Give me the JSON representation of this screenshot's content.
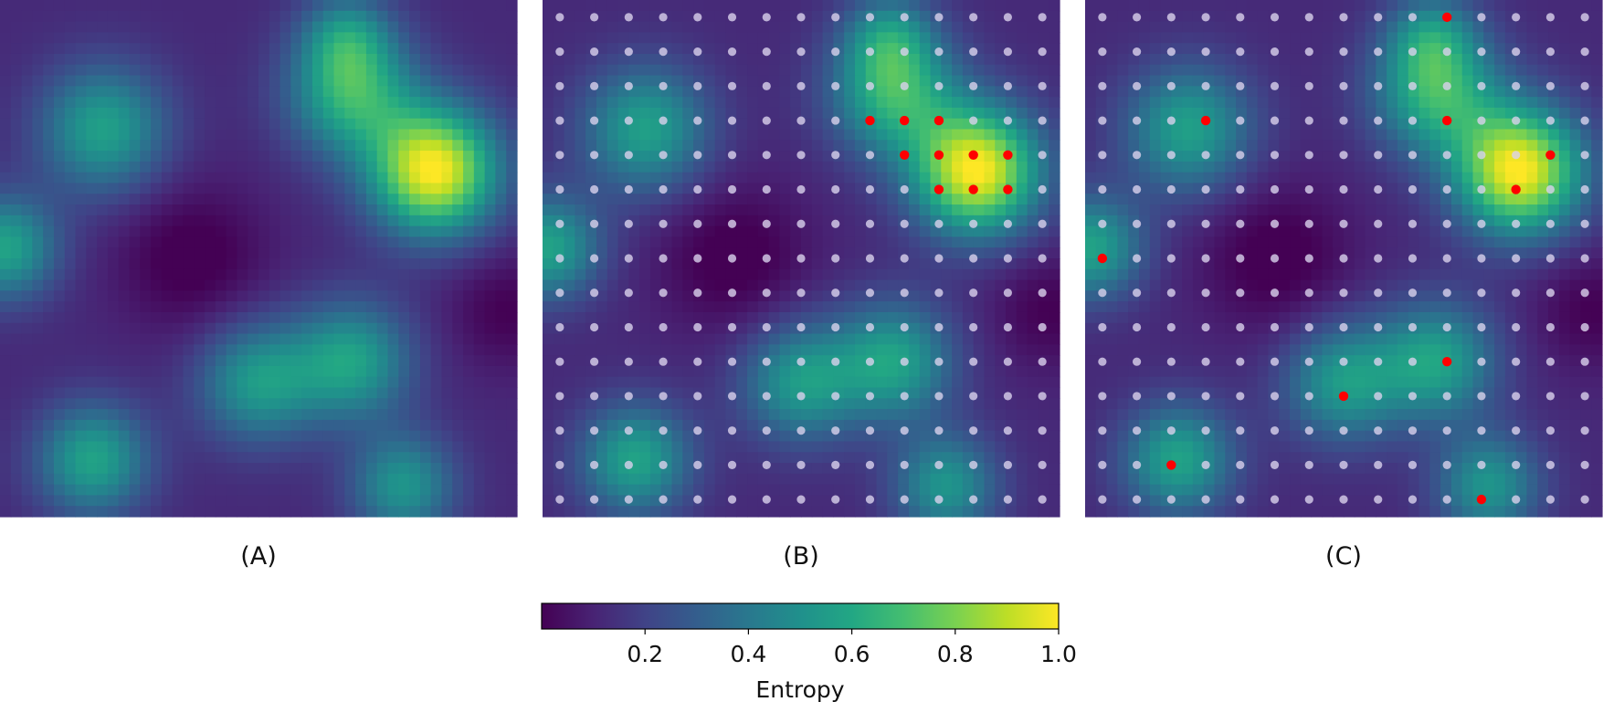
{
  "chart_data": {
    "type": "heatmap",
    "panels": [
      {
        "label": "(A)",
        "show_grid_points": false,
        "selected": []
      },
      {
        "label": "(B)",
        "show_grid_points": true,
        "selected": [
          [
            9,
            3
          ],
          [
            10,
            3
          ],
          [
            11,
            3
          ],
          [
            10,
            4
          ],
          [
            11,
            4
          ],
          [
            12,
            4
          ],
          [
            13,
            4
          ],
          [
            11,
            5
          ],
          [
            12,
            5
          ],
          [
            13,
            5
          ]
        ]
      },
      {
        "label": "(C)",
        "show_grid_points": true,
        "selected": [
          [
            10,
            0
          ],
          [
            3,
            3
          ],
          [
            10,
            3
          ],
          [
            13,
            4
          ],
          [
            12,
            5
          ],
          [
            0,
            7
          ],
          [
            10,
            10
          ],
          [
            7,
            11
          ],
          [
            2,
            13
          ],
          [
            11,
            14
          ]
        ]
      }
    ],
    "grid": {
      "cells": 48,
      "sample_points_per_side": 15
    },
    "field": {
      "background": 0.12,
      "bumps": [
        {
          "x": 0.84,
          "y": 0.33,
          "sigma": 0.085,
          "amp": 0.88
        },
        {
          "x": 0.68,
          "y": 0.18,
          "sigma": 0.085,
          "amp": 0.52
        },
        {
          "x": 0.67,
          "y": 0.07,
          "sigma": 0.06,
          "amp": 0.3
        },
        {
          "x": 0.2,
          "y": 0.25,
          "sigma": 0.085,
          "amp": 0.45
        },
        {
          "x": 0.01,
          "y": 0.48,
          "sigma": 0.07,
          "amp": 0.46
        },
        {
          "x": 0.68,
          "y": 0.7,
          "sigma": 0.08,
          "amp": 0.45
        },
        {
          "x": 0.5,
          "y": 0.74,
          "sigma": 0.08,
          "amp": 0.42
        },
        {
          "x": 0.18,
          "y": 0.89,
          "sigma": 0.075,
          "amp": 0.46
        },
        {
          "x": 0.78,
          "y": 0.94,
          "sigma": 0.07,
          "amp": 0.4
        }
      ],
      "dips": [
        {
          "x": 0.37,
          "y": 0.5,
          "sigma": 0.1,
          "amp": 0.15
        },
        {
          "x": 0.98,
          "y": 0.6,
          "sigma": 0.08,
          "amp": 0.12
        }
      ]
    },
    "colorbar": {
      "colormap": "viridis",
      "range": [
        0,
        1
      ],
      "ticks": [
        "0.2",
        "0.4",
        "0.6",
        "0.8",
        "1.0"
      ],
      "tick_values": [
        0.2,
        0.4,
        0.6,
        0.8,
        1.0
      ],
      "label": "Entropy"
    },
    "colors": {
      "grid_point": "#d9d2ec",
      "selected_point": "#ff0000"
    }
  }
}
